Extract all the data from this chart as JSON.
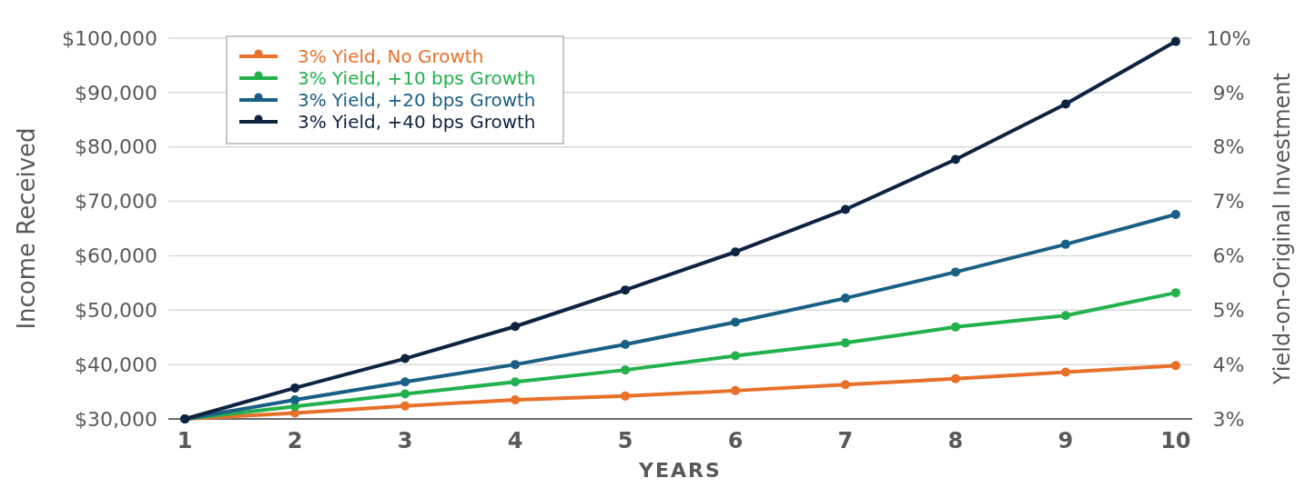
{
  "chart_data": {
    "type": "line",
    "xlabel": "YEARS",
    "ylabel": "Income Received",
    "y2label": "Yield-on-Original Investment",
    "x": [
      1,
      2,
      3,
      4,
      5,
      6,
      7,
      8,
      9,
      10
    ],
    "xlim": [
      0.85,
      10.15
    ],
    "xticks": [
      1,
      2,
      3,
      4,
      5,
      6,
      7,
      8,
      9,
      10
    ],
    "ylim": [
      30000,
      100000
    ],
    "yticks": [
      {
        "value": 30000,
        "label": "$30,000"
      },
      {
        "value": 40000,
        "label": "$40,000"
      },
      {
        "value": 50000,
        "label": "$50,000"
      },
      {
        "value": 60000,
        "label": "$60,000"
      },
      {
        "value": 70000,
        "label": "$70,000"
      },
      {
        "value": 80000,
        "label": "$80,000"
      },
      {
        "value": 90000,
        "label": "$90,000"
      },
      {
        "value": 100000,
        "label": "$100,000"
      }
    ],
    "y2lim": [
      3,
      10
    ],
    "y2ticks": [
      {
        "value": 3,
        "label": "3%"
      },
      {
        "value": 4,
        "label": "4%"
      },
      {
        "value": 5,
        "label": "5%"
      },
      {
        "value": 6,
        "label": "6%"
      },
      {
        "value": 7,
        "label": "7%"
      },
      {
        "value": 8,
        "label": "8%"
      },
      {
        "value": 9,
        "label": "9%"
      },
      {
        "value": 10,
        "label": "10%"
      }
    ],
    "grid": "y",
    "legend": "top left",
    "marker": "circle",
    "line_style": "solid",
    "series": [
      {
        "name": "3% Yield, No Growth",
        "color": "#e8702a",
        "values": [
          30000,
          31100,
          32400,
          33500,
          34200,
          35200,
          36300,
          37400,
          38600,
          39800
        ]
      },
      {
        "name": "3% Yield, +10 bps Growth",
        "color": "#22b14c",
        "values": [
          30000,
          32300,
          34600,
          36800,
          39000,
          41600,
          44000,
          46900,
          49000,
          53200
        ]
      },
      {
        "name": "3% Yield, +20 bps Growth",
        "color": "#1a5f85",
        "values": [
          30000,
          33500,
          36800,
          40000,
          43700,
          47800,
          52200,
          57000,
          62100,
          67600
        ]
      },
      {
        "name": "3% Yield, +40 bps Growth",
        "color": "#0d2340",
        "values": [
          30000,
          35700,
          41100,
          47000,
          53700,
          60700,
          68500,
          77700,
          87900,
          99400
        ]
      }
    ]
  }
}
